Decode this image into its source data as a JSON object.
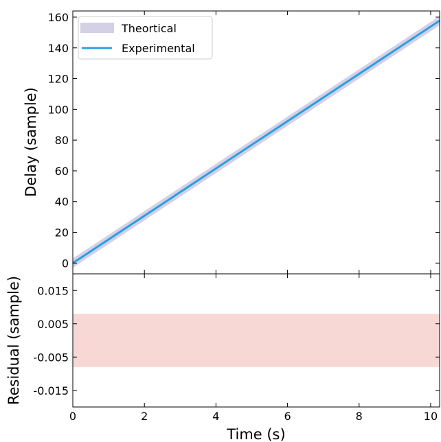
{
  "chart_data": {
    "type": "line",
    "xlabel": "Time (s)",
    "x_ticks": [
      "0",
      "2",
      "4",
      "6",
      "8",
      "10"
    ],
    "xlim": [
      0,
      10.25
    ],
    "colors": {
      "theoretical_band": "#d4d0e6",
      "experimental_line": "#2a9fe3",
      "residual_band": "#f8d8d4"
    },
    "top_panel": {
      "ylabel": "Delay (sample)",
      "ylim": [
        -7,
        164
      ],
      "y_ticks": [
        "0",
        "20",
        "40",
        "60",
        "80",
        "100",
        "120",
        "140",
        "160"
      ],
      "legend_position": "upper-left",
      "series": [
        {
          "name": "Theortical",
          "kind": "band",
          "x": [
            0,
            10.25
          ],
          "lower": [
            -3,
            154.7
          ],
          "upper": [
            3,
            160.7
          ]
        },
        {
          "name": "Experimental",
          "kind": "line",
          "x": [
            0,
            10.25
          ],
          "y": [
            0,
            157.7
          ]
        }
      ]
    },
    "bottom_panel": {
      "ylabel": "Residual (sample)",
      "ylim": [
        -0.02,
        0.02
      ],
      "y_ticks": [
        "0.015",
        "0.005",
        "-0.005",
        "-0.015"
      ],
      "band": {
        "x": [
          0,
          10.25
        ],
        "lower": -0.008,
        "upper": 0.008
      }
    }
  }
}
